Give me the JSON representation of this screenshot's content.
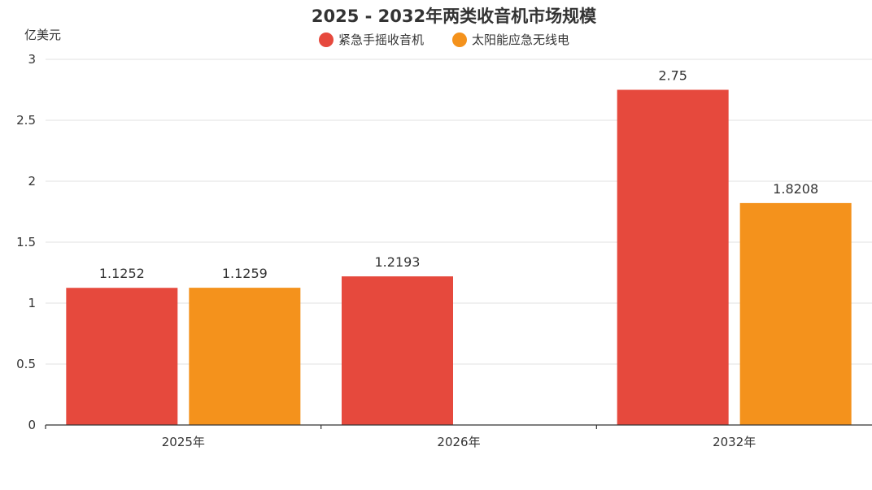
{
  "chart_data": {
    "type": "bar",
    "title": "2025 - 2032年两类收音机市场规模",
    "ylabel": "亿美元",
    "categories": [
      "2025年",
      "2026年",
      "2032年"
    ],
    "series": [
      {
        "name": "紧急手摇收音机",
        "color": "#e6493d",
        "values": [
          1.1252,
          1.2193,
          2.75
        ]
      },
      {
        "name": "太阳能应急无线电",
        "color": "#f4921c",
        "values": [
          1.1259,
          null,
          1.8208
        ]
      }
    ],
    "ylim": [
      0,
      3
    ],
    "yticks": [
      0,
      0.5,
      1,
      1.5,
      2,
      2.5,
      3
    ],
    "ytick_labels": [
      "0",
      "0.5",
      "1",
      "1.5",
      "2",
      "2.5",
      "3"
    ],
    "data_labels": [
      [
        "1.1252",
        "1.2193",
        "2.75"
      ],
      [
        "1.1259",
        "",
        "1.8208"
      ]
    ],
    "grid": true,
    "legend_position": "top-center"
  }
}
